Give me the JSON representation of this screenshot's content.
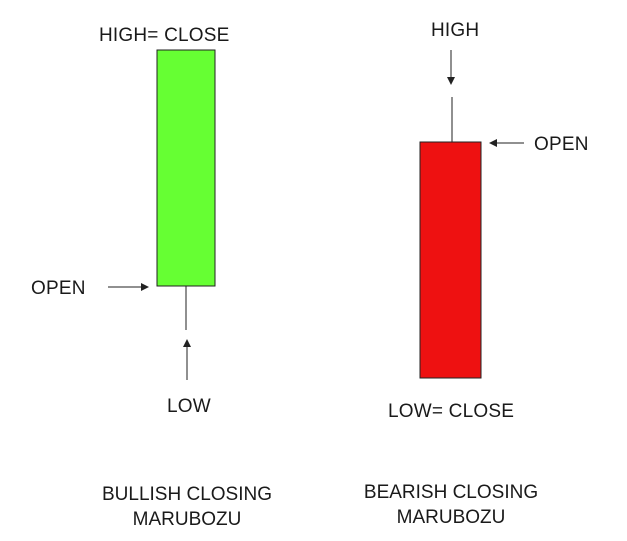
{
  "colors": {
    "bullish_body": "#66ff33",
    "bearish_body": "#ee1111",
    "outline": "#222222"
  },
  "bullish": {
    "top_label": "HIGH= CLOSE",
    "open_label": "OPEN",
    "low_label": "LOW",
    "caption_line1": "BULLISH CLOSING",
    "caption_line2": "MARUBOZU"
  },
  "bearish": {
    "high_label": "HIGH",
    "open_label": "OPEN",
    "bottom_label": "LOW= CLOSE",
    "caption_line1": "BEARISH CLOSING",
    "caption_line2": "MARUBOZU"
  }
}
